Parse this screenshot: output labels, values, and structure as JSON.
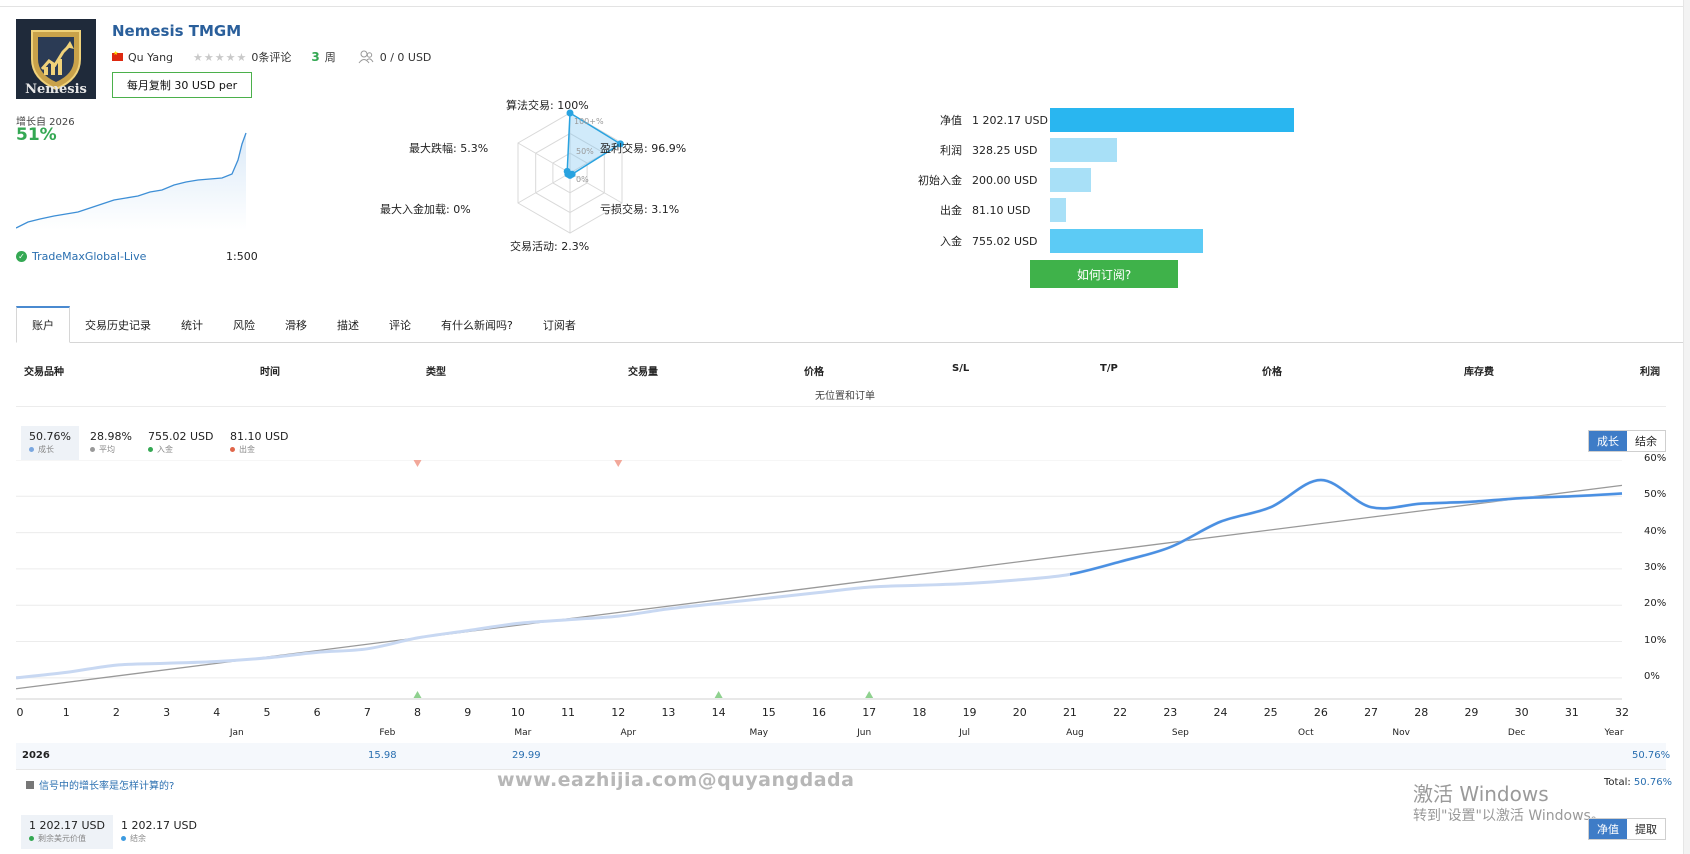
{
  "signal": {
    "title": "Nemesis TMGM",
    "author": "Qu Yang",
    "stars": "★★★★★",
    "reviews": "0条评论",
    "weeks_value": "3",
    "weeks_unit": "周",
    "subscribers": "0 / 0 USD",
    "copy_button": "每月复制 30 USD per",
    "logo_text": "Nemesis",
    "growth_label": "增长自 2026",
    "growth_value": "51%",
    "broker": "TradeMaxGlobal-Live",
    "leverage": "1:500"
  },
  "radar": {
    "labels": {
      "algo": "算法交易: 100%",
      "profit": "盈利交易: 96.9%",
      "loss": "亏损交易: 3.1%",
      "activity": "交易活动: 2.3%",
      "deposit_load": "最大入金加载: 0%",
      "drawdown": "最大跌幅: 5.3%"
    },
    "rings": [
      "100+%",
      "50%",
      "0%"
    ],
    "values": [
      100,
      96.9,
      3.1,
      2.3,
      0,
      5.3
    ]
  },
  "balance": {
    "rows": [
      {
        "label": "净值",
        "value": "1 202.17 USD",
        "amount": 1202.17,
        "color": "#29b6f0"
      },
      {
        "label": "利润",
        "value": "328.25 USD",
        "amount": 328.25,
        "color": "#a8e0f7"
      },
      {
        "label": "初始入金",
        "value": "200.00 USD",
        "amount": 200.0,
        "color": "#a8e0f7"
      },
      {
        "label": "出金",
        "value": "81.10 USD",
        "amount": 81.1,
        "color": "#a8e0f7"
      },
      {
        "label": "入金",
        "value": "755.02 USD",
        "amount": 755.02,
        "color": "#5ccbf5"
      }
    ],
    "subscribe_button": "如何订阅?"
  },
  "tabs": [
    "账户",
    "交易历史记录",
    "统计",
    "风险",
    "滑移",
    "描述",
    "评论",
    "有什么新闻吗?",
    "订阅者"
  ],
  "positions": {
    "headers": [
      "交易品种",
      "时间",
      "类型",
      "交易量",
      "价格",
      "S/L",
      "T/P",
      "价格",
      "库存费",
      "利润"
    ],
    "empty": "无位置和订单"
  },
  "growth_legend": [
    {
      "value": "50.76%",
      "name": "成长",
      "color": "#7aa7e0"
    },
    {
      "value": "28.98%",
      "name": "平均",
      "color": "#999999"
    },
    {
      "value": "755.02 USD",
      "name": "入金",
      "color": "#34a853"
    },
    {
      "value": "81.10 USD",
      "name": "出金",
      "color": "#e0664a"
    }
  ],
  "growth_toggle": {
    "on": "成长",
    "off": "结余"
  },
  "chart_data": {
    "type": "line",
    "x": [
      0,
      1,
      2,
      3,
      4,
      5,
      6,
      7,
      8,
      9,
      10,
      11,
      12,
      13,
      14,
      15,
      16,
      17,
      18,
      19,
      20,
      21,
      22,
      23,
      24,
      25,
      26,
      27,
      28,
      29,
      30,
      31,
      32
    ],
    "series": [
      {
        "name": "成长",
        "values": [
          0,
          1.5,
          3.5,
          4,
          4.5,
          5.5,
          7,
          8,
          11,
          13,
          15,
          16,
          17,
          19,
          20.5,
          22,
          23.5,
          25,
          25.5,
          26,
          27,
          28.5,
          32,
          36,
          43,
          47,
          54.5,
          47,
          48,
          48.5,
          49.5,
          50,
          50.76
        ],
        "color": "#7aa7e0"
      },
      {
        "name": "平均",
        "values": [
          -3,
          -1.25,
          0.5,
          2.25,
          4,
          5.75,
          7.5,
          9.25,
          11,
          12.75,
          14.5,
          16.25,
          18,
          19.75,
          21.5,
          23.25,
          25,
          26.75,
          28.5,
          30.25,
          32,
          33.75,
          35.5,
          37.25,
          39,
          40.75,
          42.5,
          44.25,
          46,
          47.75,
          49.5,
          51.25,
          53
        ],
        "color": "#999999"
      }
    ],
    "yticks": [
      "60%",
      "50%",
      "40%",
      "30%",
      "20%",
      "10%",
      "0%"
    ],
    "ylim": [
      -5,
      60
    ],
    "xlim": [
      0,
      32
    ],
    "months": [
      "Jan",
      "Feb",
      "Mar",
      "Apr",
      "May",
      "Jun",
      "Jul",
      "Aug",
      "Sep",
      "Oct",
      "Nov",
      "Dec",
      "Year"
    ],
    "deposit_markers": [
      8,
      14,
      17
    ],
    "withdraw_markers": [
      8,
      12
    ]
  },
  "year_table": {
    "year": "2026",
    "feb": "15.98",
    "mar": "29.99",
    "year_total": "50.76%"
  },
  "growth_link": "信号中的增长率是怎样计算的?",
  "total_label": "Total:",
  "total_value": "50.76%",
  "watermark": "www.eazhijia.com@quyangdada",
  "windows": {
    "line1": "激活 Windows",
    "line2": "转到\"设置\"以激活 Windows。"
  },
  "equity_legend": [
    {
      "value": "1 202.17 USD",
      "name": "剩余美元价值",
      "color": "#34a853"
    },
    {
      "value": "1 202.17 USD",
      "name": "结余",
      "color": "#3e9be0"
    }
  ],
  "equity_toggle": {
    "on": "净值",
    "off": "提取"
  }
}
